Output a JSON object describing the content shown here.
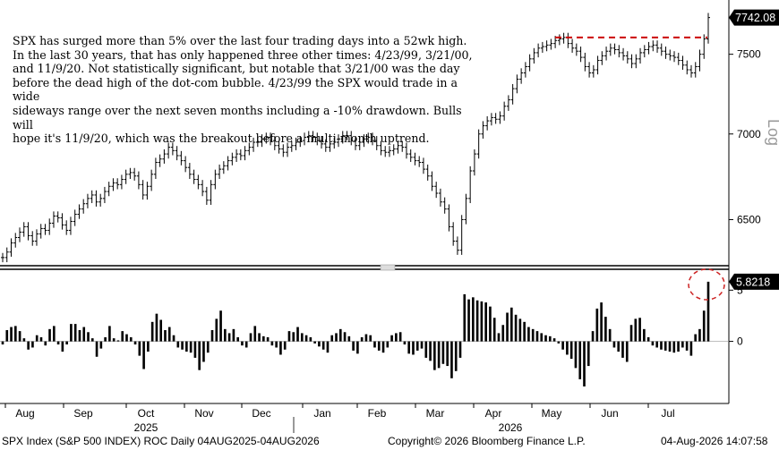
{
  "annotation": "SPX has surged more than 5% over the last four trading days into a 52wk high.\nIn the last 30 years, that has only happened three other times: 4/23/99, 3/21/00,\nand 11/9/20. Not statistically significant, but notable that 3/21/00 was the day\nbefore the dead high of the dot-com bubble. 4/23/99 the SPX would trade in a wide\nsideways range over the next seven months including a -10% drawdown. Bulls will\nhope it's 11/9/20, which was the breakout before a multi-month uptrend.",
  "footer": {
    "left": "SPX Index (S&P 500 INDEX) ROC Daily 04AUG2025-04AUG2026",
    "middle": "Copyright© 2026 Bloomberg Finance L.P.",
    "right": "04-Aug-2026 14:07:58"
  },
  "chart_data": [
    {
      "type": "line",
      "title": "",
      "ylabel": "Log",
      "yscale": "log",
      "yticks": [
        6500,
        7000,
        7500
      ],
      "ytick_labels": [
        "6500",
        "7000",
        "7500"
      ],
      "ylim": [
        6270,
        7800
      ],
      "last_value_label": "7742.08",
      "reference_line": {
        "value": 7610,
        "style": "dashed",
        "color": "#cc0000"
      },
      "series": [
        {
          "values": [
            6290,
            6320,
            6370,
            6400,
            6430,
            6460,
            6410,
            6380,
            6420,
            6450,
            6440,
            6480,
            6520,
            6510,
            6470,
            6440,
            6490,
            6530,
            6560,
            6590,
            6620,
            6640,
            6600,
            6620,
            6660,
            6690,
            6710,
            6700,
            6730,
            6760,
            6770,
            6750,
            6700,
            6640,
            6690,
            6760,
            6830,
            6850,
            6880,
            6920,
            6900,
            6870,
            6840,
            6800,
            6760,
            6730,
            6700,
            6660,
            6610,
            6700,
            6760,
            6790,
            6810,
            6840,
            6860,
            6880,
            6870,
            6900,
            6920,
            6950,
            6950,
            6970,
            6980,
            6960,
            6930,
            6910,
            6890,
            6920,
            6930,
            6950,
            6960,
            6980,
            6990,
            6980,
            6960,
            6940,
            6920,
            6940,
            6950,
            6970,
            6990,
            6990,
            6960,
            6930,
            6950,
            6970,
            6980,
            6960,
            6930,
            6900,
            6890,
            6900,
            6910,
            6930,
            6920,
            6880,
            6860,
            6840,
            6830,
            6790,
            6750,
            6690,
            6650,
            6600,
            6560,
            6460,
            6380,
            6330,
            6500,
            6620,
            6780,
            6880,
            7000,
            7050,
            7080,
            7100,
            7090,
            7110,
            7170,
            7210,
            7280,
            7340,
            7380,
            7420,
            7470,
            7510,
            7540,
            7550,
            7560,
            7570,
            7590,
            7600,
            7610,
            7570,
            7540,
            7520,
            7480,
            7420,
            7380,
            7400,
            7460,
            7490,
            7520,
            7540,
            7530,
            7510,
            7490,
            7470,
            7440,
            7470,
            7510,
            7530,
            7550,
            7560,
            7540,
            7520,
            7500,
            7490,
            7480,
            7460,
            7430,
            7400,
            7380,
            7420,
            7500,
            7600,
            7742.08
          ],
          "color": "#000000"
        }
      ]
    },
    {
      "type": "bar",
      "title": "",
      "ylabel": "",
      "yticks": [
        0,
        5
      ],
      "ytick_labels": [
        "0",
        "5"
      ],
      "ylim": [
        -5.8,
        6.6
      ],
      "last_value_label": "5.8218",
      "series": [
        {
          "values": [
            -0.3,
            1.1,
            1.4,
            1.5,
            1.0,
            0.3,
            -0.8,
            -0.6,
            0.6,
            0.4,
            -0.4,
            1.2,
            1.5,
            -0.3,
            -1.0,
            -0.3,
            1.7,
            1.7,
            1.1,
            1.4,
            0.9,
            0.3,
            -1.5,
            -0.7,
            0.4,
            1.5,
            0.3,
            0.1,
            1.0,
            0.7,
            0.4,
            -0.3,
            -1.4,
            -2.7,
            -1.0,
            1.9,
            2.7,
            2.1,
            1.1,
            1.4,
            0.6,
            -0.6,
            -0.8,
            -1.0,
            -1.1,
            -1.6,
            -2.8,
            -2.0,
            -1.1,
            1.1,
            2.2,
            3.0,
            1.2,
            0.8,
            1.2,
            0.4,
            -0.4,
            -0.6,
            0.8,
            1.5,
            0.8,
            0.5,
            0.4,
            -0.4,
            -0.6,
            -1.3,
            -0.8,
            1.0,
            0.9,
            1.4,
            0.8,
            0.6,
            0.4,
            -0.2,
            -0.5,
            -0.8,
            -1.1,
            0.6,
            0.8,
            1.2,
            0.9,
            0.5,
            -0.9,
            -1.2,
            0.4,
            0.7,
            0.6,
            -0.6,
            -0.9,
            -1.1,
            -0.6,
            0.6,
            0.8,
            0.9,
            -0.3,
            -1.2,
            -1.3,
            -0.9,
            -0.7,
            -1.6,
            -1.9,
            -2.8,
            -2.6,
            -2.2,
            -2.4,
            -3.6,
            -2.9,
            -1.6,
            4.6,
            4.1,
            4.3,
            4.0,
            3.9,
            3.8,
            3.4,
            2.3,
            0.8,
            1.6,
            2.8,
            3.3,
            2.6,
            2.2,
            1.9,
            1.4,
            1.2,
            1.0,
            0.8,
            0.6,
            0.5,
            0.3,
            -0.2,
            -0.8,
            -1.3,
            -1.7,
            -2.6,
            -3.7,
            -4.4,
            -2.4,
            1.0,
            3.2,
            3.8,
            2.4,
            1.2,
            -0.6,
            -1.0,
            -1.6,
            -2.0,
            1.6,
            2.2,
            2.3,
            1.2,
            0.4,
            -0.4,
            -0.6,
            -0.8,
            -0.9,
            -1.0,
            -1.1,
            -1.0,
            -0.6,
            -0.9,
            -1.4,
            0.7,
            1.2,
            3.0,
            5.8218
          ],
          "color": "#000000"
        }
      ]
    }
  ],
  "x_axis": {
    "month_labels": [
      "Aug",
      "Sep",
      "Oct",
      "Nov",
      "Dec",
      "Jan",
      "Feb",
      "Mar",
      "Apr",
      "May",
      "Jun",
      "Jul"
    ],
    "year_labels": [
      "2025",
      "2026"
    ]
  }
}
